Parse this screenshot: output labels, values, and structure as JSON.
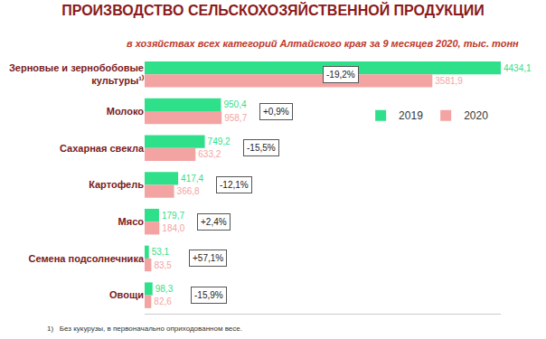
{
  "chart_data": {
    "type": "bar",
    "orientation": "horizontal",
    "title": "ПРОИЗВОДСТВО СЕЛЬСКОХОЗЯЙСТВЕННОЙ ПРОДУКЦИИ",
    "subtitle": "в хозяйствах всех категорий Алтайского края за 9 месяцев 2020, тыс. тонн",
    "categories": [
      "Зерновые и зернобобовые культуры¹⁾",
      "Молоко",
      "Сахарная свекла",
      "Картофель",
      "Мясо",
      "Семена подсолнечника",
      "Овощи"
    ],
    "series": [
      {
        "name": "2019",
        "color": "#2fe08a",
        "values": [
          4434.1,
          950.4,
          749.2,
          417.4,
          179.7,
          53.1,
          98.3
        ],
        "value_labels": [
          "4434,1",
          "950,4",
          "749,2",
          "417,4",
          "179,7",
          "53,1",
          "98,3"
        ]
      },
      {
        "name": "2020",
        "color": "#f4a3a3",
        "values": [
          3581.9,
          958.7,
          633.2,
          366.8,
          184.0,
          83.5,
          82.6
        ],
        "value_labels": [
          "3581,9",
          "958,7",
          "633,2",
          "366,8",
          "184,0",
          "83,5",
          "82,6"
        ]
      }
    ],
    "annotations": [
      "-19,2%",
      "+0,9%",
      "-15,5%",
      "-12,1%",
      "+2,4%",
      "+57,1%",
      "-15,9%"
    ],
    "xlim": [
      0,
      4434.1
    ],
    "data_labels": true,
    "tick_labels": "y",
    "grid": false,
    "legend": "top right",
    "footnote": "1)   Без кукурузы, в первоначально оприходованном весе."
  }
}
